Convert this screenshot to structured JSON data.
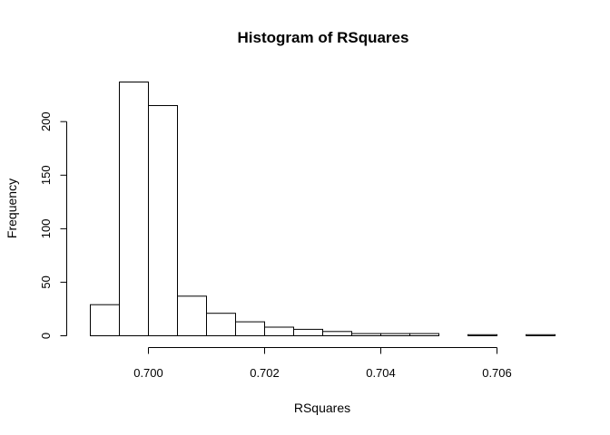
{
  "chart_data": {
    "type": "bar",
    "title": "Histogram of RSquares",
    "xlabel": "RSquares",
    "ylabel": "Frequency",
    "bin_width": 0.0005,
    "bins": [
      {
        "start": 0.699,
        "end": 0.6995,
        "count": 29
      },
      {
        "start": 0.6995,
        "end": 0.7,
        "count": 237
      },
      {
        "start": 0.7,
        "end": 0.7005,
        "count": 215
      },
      {
        "start": 0.7005,
        "end": 0.701,
        "count": 37
      },
      {
        "start": 0.701,
        "end": 0.7015,
        "count": 21
      },
      {
        "start": 0.7015,
        "end": 0.702,
        "count": 13
      },
      {
        "start": 0.702,
        "end": 0.7025,
        "count": 8
      },
      {
        "start": 0.7025,
        "end": 0.703,
        "count": 6
      },
      {
        "start": 0.703,
        "end": 0.7035,
        "count": 4
      },
      {
        "start": 0.7035,
        "end": 0.704,
        "count": 2
      },
      {
        "start": 0.704,
        "end": 0.7045,
        "count": 2
      },
      {
        "start": 0.7045,
        "end": 0.705,
        "count": 2
      },
      {
        "start": 0.705,
        "end": 0.7055,
        "count": 0
      },
      {
        "start": 0.7055,
        "end": 0.706,
        "count": 1
      },
      {
        "start": 0.706,
        "end": 0.7065,
        "count": 0
      },
      {
        "start": 0.7065,
        "end": 0.707,
        "count": 1
      }
    ],
    "xlim": [
      0.699,
      0.707
    ],
    "ylim": [
      0,
      237
    ],
    "x_ticks": [
      {
        "value": 0.7,
        "label": "0.700"
      },
      {
        "value": 0.702,
        "label": "0.702"
      },
      {
        "value": 0.704,
        "label": "0.704"
      },
      {
        "value": 0.706,
        "label": "0.706"
      }
    ],
    "y_ticks": [
      {
        "value": 0,
        "label": "0"
      },
      {
        "value": 50,
        "label": "50"
      },
      {
        "value": 100,
        "label": "100"
      },
      {
        "value": 150,
        "label": "150"
      },
      {
        "value": 200,
        "label": "200"
      }
    ],
    "grid": false,
    "legend": "none"
  }
}
